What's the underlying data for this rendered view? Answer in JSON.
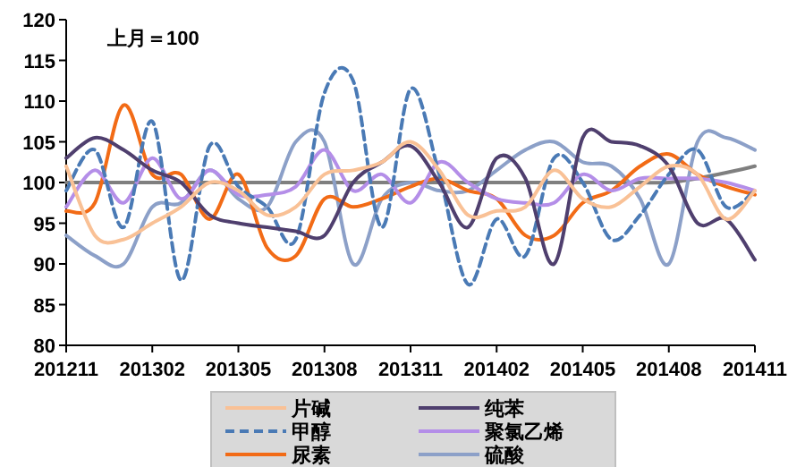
{
  "chart_data": {
    "type": "line",
    "annotations": [
      "上月＝100"
    ],
    "categories": [
      "201211",
      null,
      null,
      "201302",
      null,
      null,
      "201305",
      null,
      null,
      "201308",
      null,
      null,
      "201311",
      null,
      null,
      "201402",
      null,
      null,
      "201405",
      null,
      null,
      "201408",
      null,
      null,
      "201411"
    ],
    "ylim": [
      80,
      120
    ],
    "yticks": [
      80,
      85,
      90,
      95,
      100,
      105,
      110,
      115,
      120
    ],
    "legend": "bottom",
    "series": [
      {
        "name": "片碱",
        "color": "#f9c196",
        "values": [
          102,
          93.5,
          93,
          95,
          97,
          100,
          99,
          96,
          97,
          101,
          101.5,
          102.5,
          105,
          101.5,
          96,
          96.5,
          97,
          101.5,
          98,
          97,
          99.5,
          102,
          101,
          95.5,
          99
        ]
      },
      {
        "name": "纯苯",
        "color": "#4f3f6e",
        "values": [
          103,
          105.5,
          104,
          101.5,
          100,
          96,
          95,
          94.5,
          94,
          93.5,
          100,
          102.5,
          104.5,
          100,
          94.5,
          103,
          100.5,
          90,
          105.5,
          105,
          104.5,
          102,
          95,
          95.5,
          90.5
        ]
      },
      {
        "name": "甲醇",
        "color": "#4a7ab5",
        "line_style": "dashed",
        "values": [
          99,
          104,
          94.5,
          107.5,
          88,
          104.5,
          99.5,
          97,
          93,
          111,
          112.5,
          94.5,
          111.5,
          101,
          87.5,
          95.5,
          91,
          103,
          100,
          93,
          96,
          101,
          104,
          97,
          99
        ]
      },
      {
        "name": "聚氯乙烯",
        "color": "#b48ee8",
        "values": [
          97,
          101.5,
          97.5,
          103,
          98,
          101.5,
          98.5,
          98.5,
          99.5,
          104,
          99,
          101,
          97.5,
          102.5,
          100,
          98,
          97.5,
          97.5,
          101,
          99,
          100.5,
          100.5,
          100.5,
          100,
          99
        ]
      },
      {
        "name": "尿素",
        "color": "#f26b16",
        "values": [
          96.5,
          97.5,
          109.5,
          101,
          101,
          95.5,
          101,
          92,
          91,
          98,
          97,
          98,
          99.5,
          100.5,
          99,
          98,
          93.5,
          93.5,
          97.5,
          99,
          102,
          103.5,
          101,
          99.5,
          98.5
        ]
      },
      {
        "name": "硫酸",
        "color": "#8ca0c8",
        "values": [
          93.5,
          91,
          90,
          97,
          97.5,
          101.5,
          98,
          97,
          105,
          105,
          90,
          98,
          100,
          99,
          99,
          101.5,
          104,
          105,
          102.5,
          102,
          98,
          90,
          105,
          105.5,
          104
        ]
      },
      {
        "color": "#7f7f7f",
        "values": [
          100,
          100,
          100,
          100,
          100,
          100,
          100,
          100,
          100,
          100,
          100,
          100,
          100,
          100,
          100,
          100,
          100,
          100,
          100,
          100,
          100,
          100,
          100.5,
          101.2,
          102
        ]
      }
    ]
  }
}
